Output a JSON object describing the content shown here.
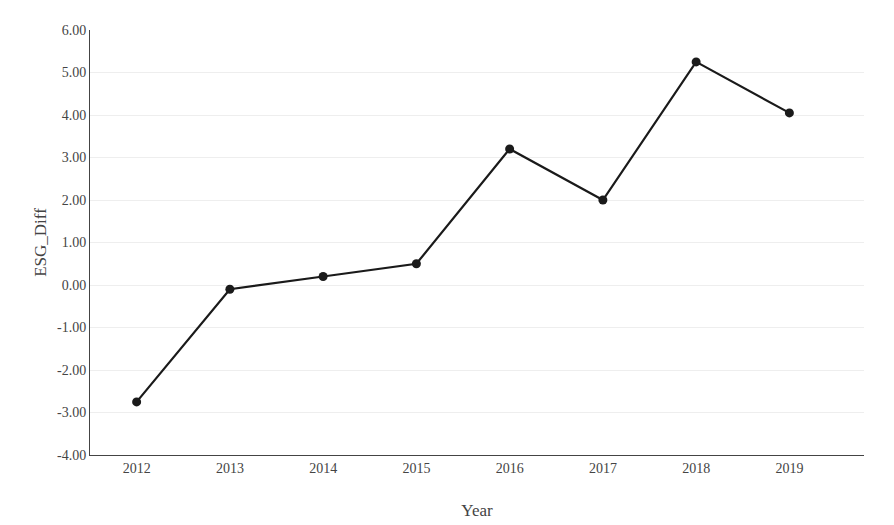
{
  "chart_data": {
    "type": "line",
    "x": [
      2012,
      2013,
      2014,
      2015,
      2016,
      2017,
      2018,
      2019
    ],
    "values": [
      -2.75,
      -0.1,
      0.2,
      0.5,
      3.2,
      2.0,
      5.25,
      4.05
    ],
    "xlabel": "Year",
    "ylabel": "ESG_Diff",
    "xlim": [
      2011.5,
      2019.8
    ],
    "xticks": [
      2012,
      2013,
      2014,
      2015,
      2016,
      2017,
      2018,
      2019
    ],
    "ylim": [
      -4.0,
      6.0
    ],
    "yticks": [
      {
        "value": -4.0,
        "label": "-4.00"
      },
      {
        "value": -3.0,
        "label": "-3.00"
      },
      {
        "value": -2.0,
        "label": "-2.00"
      },
      {
        "value": -1.0,
        "label": "-1.00"
      },
      {
        "value": 0.0,
        "label": "0.00"
      },
      {
        "value": 1.0,
        "label": "1.00"
      },
      {
        "value": 2.0,
        "label": "2.00"
      },
      {
        "value": 3.0,
        "label": "3.00"
      },
      {
        "value": 4.0,
        "label": "4.00"
      },
      {
        "value": 5.0,
        "label": "5.00"
      },
      {
        "value": 6.0,
        "label": "6.00"
      }
    ],
    "color": "#1a1a1a",
    "marker": "circle",
    "grid": "y"
  }
}
